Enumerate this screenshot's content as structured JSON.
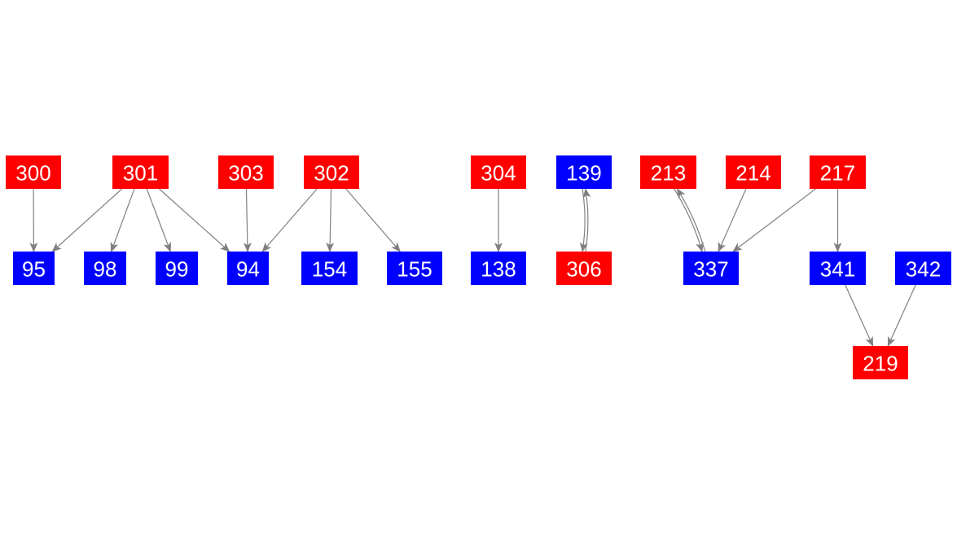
{
  "colors": {
    "red_node": "#ff0000",
    "blue_node": "#0000ff",
    "edge": "#808080",
    "label": "#ffffff"
  },
  "nodes": [
    {
      "id": "300",
      "label": "300",
      "color": "red"
    },
    {
      "id": "301",
      "label": "301",
      "color": "red"
    },
    {
      "id": "303",
      "label": "303",
      "color": "red"
    },
    {
      "id": "302",
      "label": "302",
      "color": "red"
    },
    {
      "id": "304",
      "label": "304",
      "color": "red"
    },
    {
      "id": "139",
      "label": "139",
      "color": "blue"
    },
    {
      "id": "213",
      "label": "213",
      "color": "red"
    },
    {
      "id": "214",
      "label": "214",
      "color": "red"
    },
    {
      "id": "217",
      "label": "217",
      "color": "red"
    },
    {
      "id": "95",
      "label": "95",
      "color": "blue"
    },
    {
      "id": "98",
      "label": "98",
      "color": "blue"
    },
    {
      "id": "99",
      "label": "99",
      "color": "blue"
    },
    {
      "id": "94",
      "label": "94",
      "color": "blue"
    },
    {
      "id": "154",
      "label": "154",
      "color": "blue"
    },
    {
      "id": "155",
      "label": "155",
      "color": "blue"
    },
    {
      "id": "138",
      "label": "138",
      "color": "blue"
    },
    {
      "id": "306",
      "label": "306",
      "color": "red"
    },
    {
      "id": "337",
      "label": "337",
      "color": "blue"
    },
    {
      "id": "341",
      "label": "341",
      "color": "blue"
    },
    {
      "id": "342",
      "label": "342",
      "color": "blue"
    },
    {
      "id": "219",
      "label": "219",
      "color": "red"
    }
  ],
  "edges": [
    {
      "from": "300",
      "to": "95"
    },
    {
      "from": "301",
      "to": "95"
    },
    {
      "from": "301",
      "to": "98"
    },
    {
      "from": "301",
      "to": "99"
    },
    {
      "from": "301",
      "to": "94"
    },
    {
      "from": "303",
      "to": "94"
    },
    {
      "from": "302",
      "to": "94"
    },
    {
      "from": "302",
      "to": "154"
    },
    {
      "from": "302",
      "to": "155"
    },
    {
      "from": "304",
      "to": "138"
    },
    {
      "from": "139",
      "to": "306"
    },
    {
      "from": "306",
      "to": "139"
    },
    {
      "from": "213",
      "to": "337"
    },
    {
      "from": "337",
      "to": "213"
    },
    {
      "from": "214",
      "to": "337"
    },
    {
      "from": "217",
      "to": "337"
    },
    {
      "from": "217",
      "to": "341"
    },
    {
      "from": "341",
      "to": "219"
    },
    {
      "from": "342",
      "to": "219"
    }
  ]
}
